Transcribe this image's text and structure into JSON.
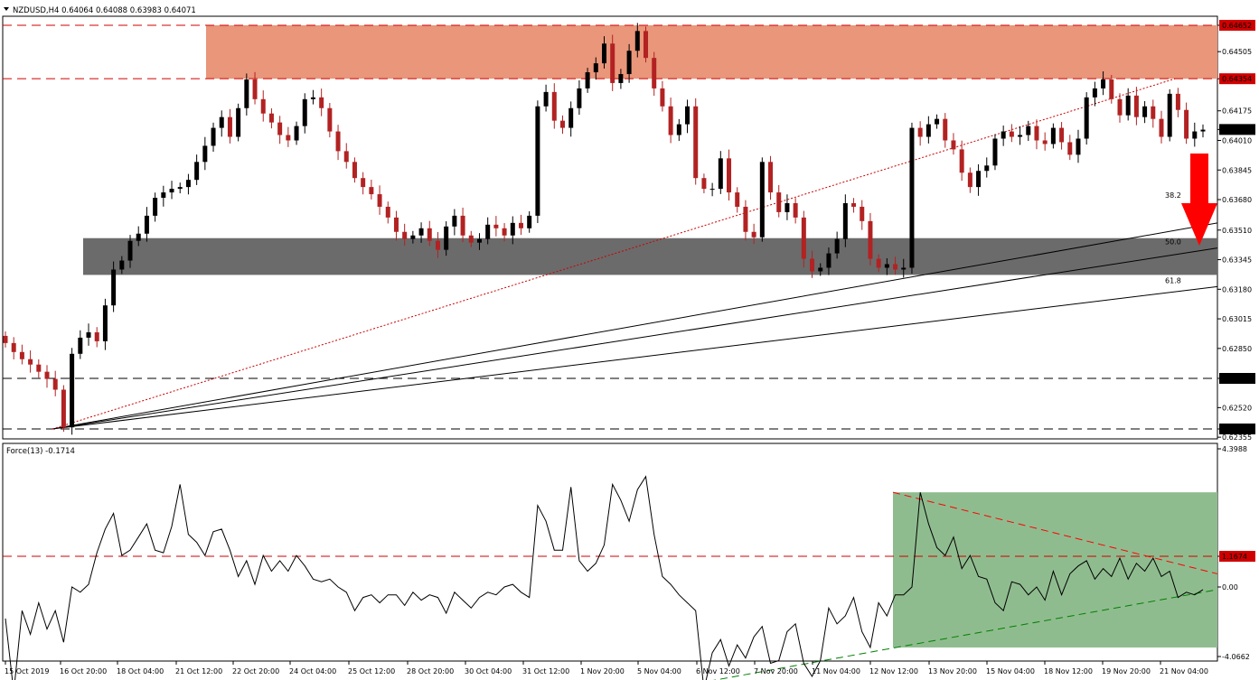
{
  "header": {
    "symbol_line": "NZDUSD,H4  0.64064 0.64088 0.63983 0.64071"
  },
  "indicator": {
    "label": "Force(13) -0.1714"
  },
  "colors": {
    "bull_candle": "#000000",
    "bear_candle": "#b22222",
    "resistance_zone": "#e9967a",
    "support_zone": "#6b6b6b",
    "force_channel": "#8fbc8f",
    "arrow": "#ff0000",
    "highlight_label_bg": "#d00000"
  },
  "chart_data": [
    {
      "type": "candlestick",
      "title": "NZDUSD,H4",
      "ohlc_current": {
        "open": 0.64064,
        "high": 0.64088,
        "low": 0.63983,
        "close": 0.64071
      },
      "ylim": [
        0.62355,
        0.64652
      ],
      "price_ticks": [
        "0.64652",
        "0.64505",
        "0.64354",
        "0.64175",
        "0.64071",
        "0.64010",
        "0.63845",
        "0.63680",
        "0.63510",
        "0.63345",
        "0.63180",
        "0.63015",
        "0.62850",
        "0.62683",
        "0.62520",
        "0.62401",
        "0.62355"
      ],
      "highlighted_levels": [
        {
          "value": 0.64652,
          "label": "0.64652",
          "style": "dashed",
          "color": "#d00000"
        },
        {
          "value": 0.64354,
          "label": "0.64354",
          "style": "dashed",
          "color": "#d00000"
        },
        {
          "value": 0.62683,
          "label": "0.62683",
          "style": "dashed",
          "color": "#000000"
        },
        {
          "value": 0.62401,
          "label": "0.62401",
          "style": "dashed",
          "color": "#000000"
        }
      ],
      "current_price_label": "0.64071",
      "resistance_zone": [
        0.64354,
        0.64652
      ],
      "support_zone": [
        0.6326,
        0.63465
      ],
      "fibonacci_fan_labels": [
        "38.2",
        "50.0",
        "61.8"
      ],
      "x_labels": [
        "15 Oct 2019",
        "16 Oct 20:00",
        "18 Oct 04:00",
        "21 Oct 12:00",
        "22 Oct 20:00",
        "24 Oct 04:00",
        "25 Oct 12:00",
        "28 Oct 20:00",
        "30 Oct 04:00",
        "31 Oct 12:00",
        "1 Nov 20:00",
        "5 Nov 04:00",
        "6 Nov 12:00",
        "7 Nov 20:00",
        "11 Nov 04:00",
        "12 Nov 12:00",
        "13 Nov 20:00",
        "15 Nov 04:00",
        "18 Nov 12:00",
        "19 Nov 20:00",
        "21 Nov 04:00"
      ],
      "close_path": [
        0.6288,
        0.6283,
        0.6279,
        0.6276,
        0.6272,
        0.6268,
        0.6262,
        0.6241,
        0.6282,
        0.6291,
        0.6294,
        0.6289,
        0.6309,
        0.6329,
        0.6334,
        0.6345,
        0.6349,
        0.6359,
        0.6369,
        0.6372,
        0.6374,
        0.6375,
        0.6379,
        0.6389,
        0.6398,
        0.6408,
        0.6414,
        0.6403,
        0.6419,
        0.6435,
        0.6424,
        0.6416,
        0.6411,
        0.6404,
        0.6401,
        0.6409,
        0.6424,
        0.6425,
        0.6419,
        0.6406,
        0.6395,
        0.6389,
        0.638,
        0.6375,
        0.6371,
        0.6364,
        0.6358,
        0.635,
        0.6346,
        0.6348,
        0.6352,
        0.6345,
        0.634,
        0.6353,
        0.6359,
        0.6348,
        0.6344,
        0.6346,
        0.6354,
        0.6352,
        0.6348,
        0.6355,
        0.6352,
        0.6359,
        0.642,
        0.6428,
        0.6412,
        0.6408,
        0.6419,
        0.643,
        0.6439,
        0.6444,
        0.6455,
        0.6433,
        0.6438,
        0.6451,
        0.6462,
        0.6447,
        0.643,
        0.642,
        0.6404,
        0.641,
        0.642,
        0.638,
        0.6374,
        0.6374,
        0.6391,
        0.6372,
        0.6364,
        0.635,
        0.6347,
        0.6389,
        0.6372,
        0.6361,
        0.6366,
        0.6358,
        0.6335,
        0.6328,
        0.633,
        0.6338,
        0.6346,
        0.6366,
        0.6364,
        0.6356,
        0.6335,
        0.633,
        0.6332,
        0.6329,
        0.633,
        0.6408,
        0.6403,
        0.641,
        0.6413,
        0.6401,
        0.6396,
        0.6383,
        0.6375,
        0.6384,
        0.6387,
        0.6402,
        0.6406,
        0.6403,
        0.6404,
        0.6409,
        0.6401,
        0.6399,
        0.6408,
        0.64,
        0.6393,
        0.6402,
        0.6425,
        0.643,
        0.6435,
        0.6424,
        0.6415,
        0.6426,
        0.6414,
        0.642,
        0.6413,
        0.6403,
        0.6427,
        0.6418,
        0.6402,
        0.6406,
        0.6407
      ]
    },
    {
      "type": "line",
      "title": "Force(13) -0.1714",
      "ylim": [
        -4.0662,
        4.3988
      ],
      "y_ticks": [
        "4.3988",
        "1.1674",
        "0.00",
        "-4.0662"
      ],
      "highlighted_level": {
        "value": 1.1674,
        "label": "1.1674"
      },
      "values": [
        -1.2,
        -4.0,
        -0.9,
        -1.8,
        -0.6,
        -1.6,
        -0.9,
        -2.1,
        0.0,
        -0.2,
        0.1,
        1.3,
        2.2,
        2.8,
        1.2,
        1.4,
        1.9,
        2.4,
        1.4,
        1.3,
        2.3,
        3.9,
        2.0,
        1.7,
        1.2,
        2.1,
        2.2,
        1.4,
        0.4,
        1.0,
        0.1,
        1.2,
        0.6,
        1.0,
        0.6,
        1.2,
        0.8,
        0.3,
        0.2,
        0.3,
        0.0,
        -0.2,
        -0.9,
        -0.4,
        -0.3,
        -0.6,
        -0.3,
        -0.3,
        -0.7,
        -0.2,
        -0.5,
        -0.3,
        -0.4,
        -1.0,
        -0.2,
        -0.5,
        -0.8,
        -0.4,
        -0.2,
        -0.3,
        0.0,
        0.1,
        -0.2,
        -0.4,
        3.1,
        2.5,
        1.4,
        1.4,
        3.8,
        1.0,
        0.6,
        0.9,
        1.6,
        3.9,
        3.3,
        2.5,
        3.7,
        4.2,
        2.0,
        0.4,
        0.1,
        -0.3,
        -0.6,
        -0.9,
        -3.9,
        -2.5,
        -2.0,
        -3.0,
        -2.2,
        -2.7,
        -1.9,
        -1.5,
        -2.9,
        -2.8,
        -1.7,
        -1.4,
        -2.9,
        -3.4,
        -2.8,
        -0.8,
        -1.4,
        -1.1,
        -0.4,
        -1.7,
        -2.3,
        -0.6,
        -1.1,
        -0.3,
        -0.3,
        0.0,
        3.6,
        2.4,
        1.5,
        1.2,
        1.9,
        0.7,
        1.2,
        0.4,
        0.3,
        -0.6,
        -0.9,
        0.2,
        0.1,
        -0.3,
        0.0,
        -0.5,
        0.6,
        -0.3,
        0.5,
        0.8,
        1.0,
        0.3,
        0.7,
        0.4,
        1.1,
        0.3,
        0.9,
        0.6,
        1.1,
        0.4,
        0.6,
        -0.4,
        -0.2,
        -0.3,
        -0.1
      ]
    }
  ]
}
